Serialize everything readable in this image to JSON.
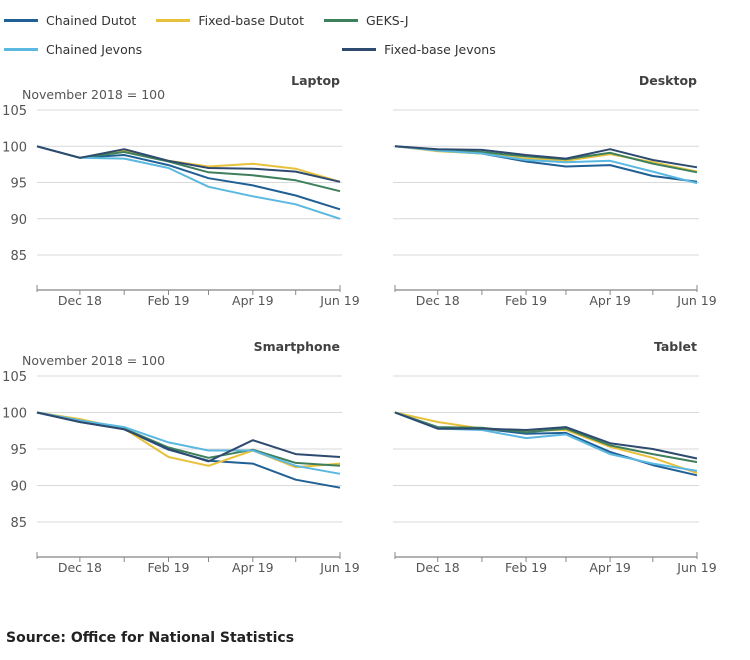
{
  "legend": [
    {
      "name": "Chained Dutot",
      "color": "#206095"
    },
    {
      "name": "Fixed-base Dutot",
      "color": "#E8C13C"
    },
    {
      "name": "GEKS-J",
      "color": "#3E7F5C"
    },
    {
      "name": "Chained Jevons",
      "color": "#5BB8E1"
    },
    {
      "name": "Fixed-base Jevons",
      "color": "#2E4A6E"
    }
  ],
  "source": "Source: Office for National Statistics",
  "chart_data": [
    {
      "type": "line",
      "title": "Laptop",
      "ylabel": "November 2018 = 100",
      "x": [
        "Nov 18",
        "Dec 18",
        "Jan 19",
        "Feb 19",
        "Mar 19",
        "Apr 19",
        "May 19",
        "Jun 19"
      ],
      "xticklabels": [
        "Dec 18",
        "Feb 19",
        "Apr 19",
        "Jun 19"
      ],
      "ylim": [
        80,
        105
      ],
      "yticks": [
        85,
        90,
        95,
        100,
        105
      ],
      "grid": true,
      "series": [
        {
          "name": "Chained Dutot",
          "values": [
            100,
            98.4,
            98.8,
            97.4,
            95.6,
            94.6,
            93.2,
            91.3
          ]
        },
        {
          "name": "Fixed-base Dutot",
          "values": [
            100,
            98.4,
            99.4,
            98.0,
            97.2,
            97.6,
            96.9,
            95.1
          ]
        },
        {
          "name": "GEKS-J",
          "values": [
            100,
            98.4,
            99.2,
            97.9,
            96.4,
            96.0,
            95.3,
            93.8
          ]
        },
        {
          "name": "Chained Jevons",
          "values": [
            100,
            98.4,
            98.3,
            97.0,
            94.4,
            93.1,
            92.0,
            90.0
          ]
        },
        {
          "name": "Fixed-base Jevons",
          "values": [
            100,
            98.4,
            99.6,
            98.0,
            97.0,
            96.9,
            96.5,
            95.1
          ]
        }
      ]
    },
    {
      "type": "line",
      "title": "Desktop",
      "ylabel": "",
      "x": [
        "Nov 18",
        "Dec 18",
        "Jan 19",
        "Feb 19",
        "Mar 19",
        "Apr 19",
        "May 19",
        "Jun 19"
      ],
      "xticklabels": [
        "Dec 18",
        "Feb 19",
        "Apr 19",
        "Jun 19"
      ],
      "ylim": [
        80,
        105
      ],
      "yticks": [],
      "grid": true,
      "series": [
        {
          "name": "Chained Dutot",
          "values": [
            100,
            99.4,
            99.0,
            97.9,
            97.2,
            97.4,
            95.9,
            95.1
          ]
        },
        {
          "name": "Fixed-base Dutot",
          "values": [
            100,
            99.3,
            99.0,
            98.3,
            98.0,
            98.9,
            97.8,
            96.5
          ]
        },
        {
          "name": "GEKS-J",
          "values": [
            100,
            99.5,
            99.2,
            98.6,
            98.2,
            99.1,
            97.6,
            96.4
          ]
        },
        {
          "name": "Chained Jevons",
          "values": [
            100,
            99.4,
            99.0,
            98.1,
            97.8,
            98.0,
            96.5,
            94.9
          ]
        },
        {
          "name": "Fixed-base Jevons",
          "values": [
            100,
            99.6,
            99.5,
            98.8,
            98.3,
            99.6,
            98.1,
            97.1
          ]
        }
      ]
    },
    {
      "type": "line",
      "title": "Smartphone",
      "ylabel": "November 2018 = 100",
      "x": [
        "Nov 18",
        "Dec 18",
        "Jan 19",
        "Feb 19",
        "Mar 19",
        "Apr 19",
        "May 19",
        "Jun 19"
      ],
      "xticklabels": [
        "Dec 18",
        "Feb 19",
        "Apr 19",
        "Jun 19"
      ],
      "ylim": [
        80,
        105
      ],
      "yticks": [
        85,
        90,
        95,
        100,
        105
      ],
      "grid": true,
      "series": [
        {
          "name": "Chained Dutot",
          "values": [
            100,
            98.7,
            97.7,
            94.9,
            93.4,
            93.0,
            90.8,
            89.7
          ]
        },
        {
          "name": "Fixed-base Dutot",
          "values": [
            100,
            99.1,
            97.8,
            93.9,
            92.7,
            94.8,
            92.5,
            93.0
          ]
        },
        {
          "name": "GEKS-J",
          "values": [
            100,
            98.9,
            97.8,
            95.2,
            93.8,
            94.9,
            93.1,
            92.7
          ]
        },
        {
          "name": "Chained Jevons",
          "values": [
            100,
            98.9,
            98.0,
            95.9,
            94.8,
            94.8,
            92.7,
            91.6
          ]
        },
        {
          "name": "Fixed-base Jevons",
          "values": [
            100,
            98.7,
            97.7,
            95.0,
            93.3,
            96.2,
            94.3,
            93.9
          ]
        }
      ]
    },
    {
      "type": "line",
      "title": "Tablet",
      "ylabel": "",
      "x": [
        "Nov 18",
        "Dec 18",
        "Jan 19",
        "Feb 19",
        "Mar 19",
        "Apr 19",
        "May 19",
        "Jun 19"
      ],
      "xticklabels": [
        "Dec 18",
        "Feb 19",
        "Apr 19",
        "Jun 19"
      ],
      "ylim": [
        80,
        105
      ],
      "yticks": [],
      "grid": true,
      "series": [
        {
          "name": "Chained Dutot",
          "values": [
            100,
            97.8,
            97.8,
            97.1,
            97.2,
            94.6,
            92.8,
            91.4
          ]
        },
        {
          "name": "Fixed-base Dutot",
          "values": [
            100,
            98.7,
            97.8,
            97.5,
            97.6,
            95.3,
            93.8,
            91.7
          ]
        },
        {
          "name": "GEKS-J",
          "values": [
            100,
            98.0,
            97.9,
            97.3,
            97.8,
            95.5,
            94.3,
            93.2
          ]
        },
        {
          "name": "Chained Jevons",
          "values": [
            100,
            97.8,
            97.6,
            96.5,
            97.0,
            94.3,
            93.0,
            92.0
          ]
        },
        {
          "name": "Fixed-base Jevons",
          "values": [
            100,
            97.8,
            97.8,
            97.6,
            98.0,
            95.8,
            95.0,
            93.7
          ]
        }
      ]
    }
  ]
}
